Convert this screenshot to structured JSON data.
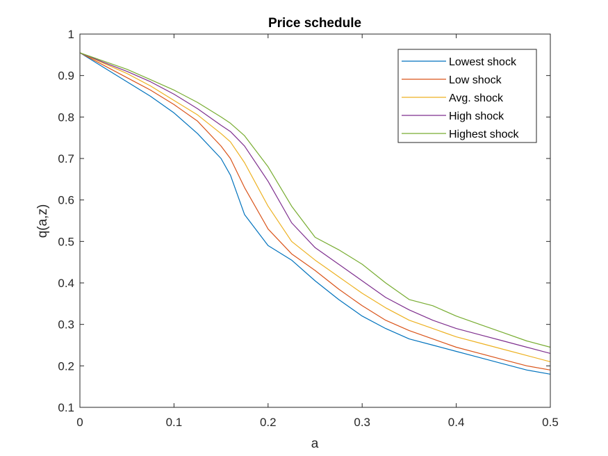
{
  "chart_data": {
    "type": "line",
    "title": "Price schedule",
    "xlabel": "a",
    "ylabel": "q(a,z)",
    "xlim": [
      0,
      0.5
    ],
    "ylim": [
      0.1,
      1
    ],
    "xticks": [
      "0",
      "0.1",
      "0.2",
      "0.3",
      "0.4",
      "0.5"
    ],
    "yticks": [
      "0.1",
      "0.2",
      "0.3",
      "0.4",
      "0.5",
      "0.6",
      "0.7",
      "0.8",
      "0.9",
      "1"
    ],
    "grid": false,
    "legend_position": "top-right",
    "x": [
      0,
      0.025,
      0.05,
      0.075,
      0.1,
      0.125,
      0.15,
      0.16,
      0.175,
      0.2,
      0.225,
      0.25,
      0.275,
      0.3,
      0.325,
      0.35,
      0.375,
      0.4,
      0.425,
      0.45,
      0.475,
      0.5
    ],
    "series": [
      {
        "name": "Lowest shock",
        "color": "#0072BD",
        "values": [
          0.955,
          0.92,
          0.885,
          0.85,
          0.81,
          0.76,
          0.7,
          0.66,
          0.565,
          0.49,
          0.455,
          0.405,
          0.36,
          0.32,
          0.29,
          0.265,
          0.25,
          0.235,
          0.22,
          0.205,
          0.19,
          0.18
        ]
      },
      {
        "name": "Low shock",
        "color": "#D95319",
        "values": [
          0.955,
          0.925,
          0.895,
          0.865,
          0.83,
          0.79,
          0.73,
          0.7,
          0.63,
          0.53,
          0.47,
          0.43,
          0.385,
          0.345,
          0.31,
          0.285,
          0.265,
          0.245,
          0.23,
          0.215,
          0.2,
          0.19
        ]
      },
      {
        "name": "Avg. shock",
        "color": "#EDB120",
        "values": [
          0.955,
          0.93,
          0.905,
          0.875,
          0.84,
          0.805,
          0.76,
          0.74,
          0.69,
          0.585,
          0.5,
          0.455,
          0.415,
          0.375,
          0.34,
          0.31,
          0.29,
          0.27,
          0.255,
          0.24,
          0.225,
          0.21
        ]
      },
      {
        "name": "High shock",
        "color": "#7E2F8E",
        "values": [
          0.955,
          0.932,
          0.91,
          0.885,
          0.855,
          0.82,
          0.78,
          0.765,
          0.73,
          0.645,
          0.545,
          0.485,
          0.445,
          0.405,
          0.365,
          0.335,
          0.31,
          0.29,
          0.275,
          0.26,
          0.245,
          0.23
        ]
      },
      {
        "name": "Highest shock",
        "color": "#77AC30",
        "values": [
          0.955,
          0.935,
          0.915,
          0.89,
          0.865,
          0.835,
          0.8,
          0.785,
          0.755,
          0.68,
          0.585,
          0.51,
          0.48,
          0.445,
          0.4,
          0.36,
          0.345,
          0.32,
          0.3,
          0.28,
          0.26,
          0.245
        ]
      }
    ]
  }
}
